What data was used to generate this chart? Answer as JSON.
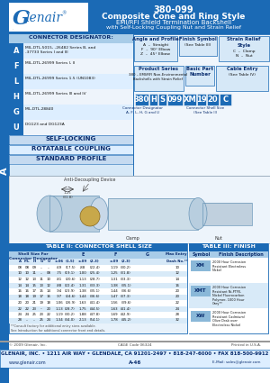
{
  "title_part": "380-099",
  "title_main": "Composite Cone and Ring Style",
  "title_sub1": "EMI/RFI Shield Termination Backshell",
  "title_sub2": "with Self-Locking Coupling Nut and Strain Relief",
  "blue": "#1b6ab5",
  "light_blue": "#5ba3d9",
  "pale_blue": "#d6e8f7",
  "mid_blue": "#a8cce8",
  "white": "#ffffff",
  "dark_text": "#1a1a1a",
  "navy": "#0a2d6e",
  "connector_designators": [
    [
      "A",
      "MIL-DTL-5015, -26482 Series B, and\n-37733 Series I and III"
    ],
    [
      "F",
      "MIL-DTL-26999 Series I, II"
    ],
    [
      "L",
      "MIL-DTL-26999 Series 1.5 (UN1083)"
    ],
    [
      "H",
      "MIL-DTL-26999 Series III and IV"
    ],
    [
      "G",
      "MIL-DTL-28840"
    ],
    [
      "U",
      "DG123 and DG123A"
    ]
  ],
  "part_number_boxes": [
    "380",
    "H",
    "S",
    "099",
    "XM",
    "19",
    "20",
    "C"
  ],
  "table2_title": "TABLE II: CONNECTOR SHELL SIZE",
  "table2_col_headers": [
    "Shell Size For\nConnector Designator",
    "E",
    "F",
    "G",
    "Max Entry"
  ],
  "table2_subheaders": [
    "A",
    "F/L",
    "H",
    "G",
    "U",
    "±.06",
    "(1.5)",
    "±.09",
    "(2.3)",
    "±.09",
    "(2.3)",
    "Dash No.**"
  ],
  "table2_data": [
    [
      "08",
      "08",
      "09",
      "–",
      "–",
      ".69",
      "(17.5)",
      ".88",
      "(22.4)",
      "1.19",
      "(30.2)",
      "10"
    ],
    [
      "10",
      "10",
      "11",
      "–",
      "08",
      ".75",
      "(19.1)",
      "1.00",
      "(25.4)",
      "1.25",
      "(31.8)",
      "12"
    ],
    [
      "12",
      "12",
      "13",
      "11",
      "10",
      ".81",
      "(20.6)",
      "1.13",
      "(28.7)",
      "1.31",
      "(33.3)",
      "14"
    ],
    [
      "14",
      "14",
      "15",
      "13",
      "12",
      ".88",
      "(22.4)",
      "1.31",
      "(33.3)",
      "1.38",
      "(35.1)",
      "16"
    ],
    [
      "16",
      "16",
      "17",
      "15",
      "14",
      ".94",
      "(23.9)",
      "1.38",
      "(35.1)",
      "1.44",
      "(36.6)",
      "20"
    ],
    [
      "18",
      "18",
      "19",
      "17",
      "16",
      ".97",
      "(24.6)",
      "1.44",
      "(36.6)",
      "1.47",
      "(37.3)",
      "20"
    ],
    [
      "20",
      "20",
      "21",
      "19",
      "18",
      "1.06",
      "(26.9)",
      "1.63",
      "(41.4)",
      "1.56",
      "(39.6)",
      "22"
    ],
    [
      "22",
      "22",
      "23",
      "–",
      "20",
      "1.13",
      "(28.7)",
      "1.75",
      "(44.5)",
      "1.63",
      "(41.4)",
      "24"
    ],
    [
      "24",
      "24",
      "25",
      "23",
      "22",
      "1.19",
      "(30.2)",
      "1.88",
      "(47.8)",
      "1.69",
      "(42.9)",
      "28"
    ],
    [
      "28",
      "–",
      "–",
      "25",
      "24",
      "1.34",
      "(34.0)",
      "2.13",
      "(54.1)",
      "1.78",
      "(45.2)",
      "32"
    ]
  ],
  "table2_footnote": "**Consult factory for additional entry sizes available.\nSee Introduction for additional connector front end details.",
  "table3_title": "TABLE III: FINISH",
  "table3_data": [
    [
      "XM",
      "2000 Hour Corrosion\nResistant Electroless\nNickel"
    ],
    [
      "XMT",
      "2000 Hour Corrosion\nResistant Ni-PTFE,\nNickel Fluorocarbon\nPolymer, 1000 Hour\nGrey**"
    ],
    [
      "XW",
      "2000 Hour Corrosion\nResistant Cadmium/\nOlive Drab over\nElectroless Nickel"
    ]
  ],
  "footer_copyright": "© 2009 Glenair, Inc.",
  "footer_cage": "CAGE Code 06324",
  "footer_printed": "Printed in U.S.A.",
  "footer_company": "GLENAIR, INC. • 1211 AIR WAY • GLENDALE, CA 91201-2497 • 818-247-6000 • FAX 818-500-9912",
  "footer_web": "www.glenair.com",
  "footer_page": "A-46",
  "footer_email": "E-Mail: sales@glenair.com"
}
